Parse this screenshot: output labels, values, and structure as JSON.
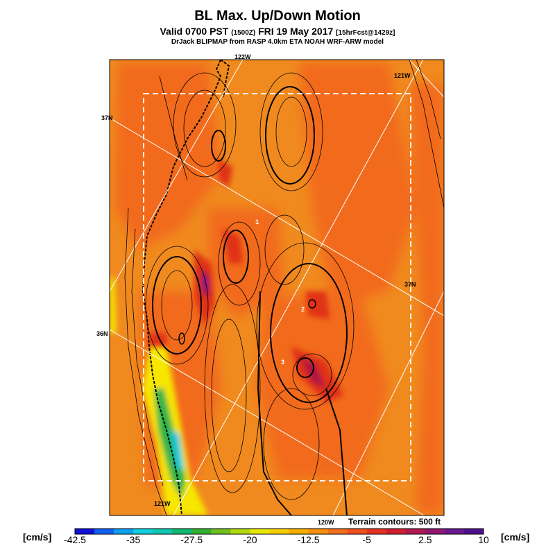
{
  "header": {
    "title": "BL Max. Up/Down Motion",
    "valid_main": "Valid 0700 PST",
    "valid_utc": "(1500Z)",
    "valid_date": "FRI 19 May 2017",
    "forecast": "[15hrFcst@1429z]",
    "subtitle": "DrJack BLIPMAP from RASP 4.0km ETA NOAH WRF-ARW model"
  },
  "map": {
    "lon_labels": [
      "122W",
      "121W",
      "121W",
      "120W"
    ],
    "lat_labels": [
      "37N",
      "37N",
      "36N"
    ],
    "site_markers": [
      "1",
      "2",
      "3"
    ],
    "terrain_note": "Terrain contours: 500 ft",
    "colors": {
      "base": "#f08a1e",
      "warm": "#f26a1e",
      "hot": "#e03018",
      "strong": "#b01840",
      "peak": "#5a189a",
      "coast_yellow": "#f6e600",
      "coast_green": "#28b44a",
      "coast_cyan": "#10c8e0"
    }
  },
  "colorbar": {
    "unit_left": "[cm/s]",
    "unit_right": "[cm/s]",
    "tick_labels": [
      "-42.5",
      "-35",
      "-27.5",
      "-20",
      "-12.5",
      "-5",
      "2.5",
      "10"
    ],
    "colors": [
      "#1010d8",
      "#1060f0",
      "#10a0f0",
      "#10d0e0",
      "#10c8b0",
      "#10b870",
      "#30b030",
      "#70c020",
      "#b0d810",
      "#e8e800",
      "#f8d000",
      "#f8b000",
      "#f89010",
      "#f07020",
      "#f05020",
      "#e83020",
      "#d02030",
      "#b01850",
      "#901870",
      "#6a1890",
      "#50108a"
    ]
  }
}
